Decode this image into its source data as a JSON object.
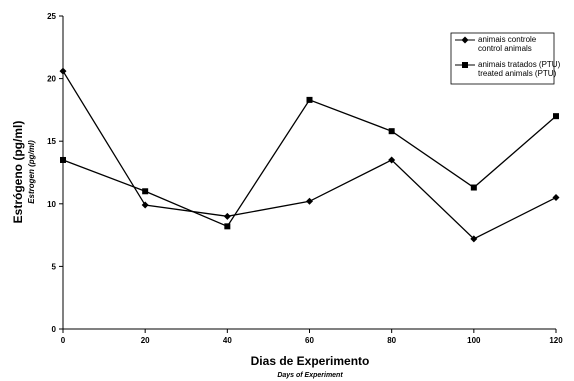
{
  "chart_data": {
    "type": "line",
    "x": [
      0,
      20,
      40,
      60,
      80,
      100,
      120
    ],
    "xlim": [
      0,
      120
    ],
    "ylim": [
      0,
      25
    ],
    "xticks": [
      "0",
      "20",
      "40",
      "60",
      "80",
      "100",
      "120"
    ],
    "yticks": [
      "0",
      "5",
      "10",
      "15",
      "20",
      "25"
    ],
    "xlabel": "Dias de Experimento",
    "xlabel_en": "Days of Experiment",
    "ylabel": "Estrógeno (pg/ml)",
    "ylabel_en": "Estrogen (pg/ml)",
    "grid": false,
    "legend_position": "top-right",
    "series": [
      {
        "name": "animais controle",
        "name_en": "control animals",
        "marker": "diamond",
        "color": "#000000",
        "values": [
          20.6,
          9.9,
          9.0,
          10.2,
          13.5,
          7.2,
          10.5
        ]
      },
      {
        "name": "animais tratados (PTU)",
        "name_en": "treated animals (PTU)",
        "marker": "square",
        "color": "#000000",
        "values": [
          13.5,
          11.0,
          8.2,
          18.3,
          15.8,
          11.3,
          17.0
        ]
      }
    ]
  }
}
